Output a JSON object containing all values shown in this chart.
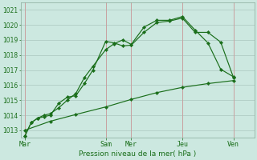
{
  "xlabel": "Pression niveau de la mer( hPa )",
  "ylim": [
    1012.5,
    1021.5
  ],
  "yticks": [
    1013,
    1014,
    1015,
    1016,
    1017,
    1018,
    1019,
    1020,
    1021
  ],
  "xlim": [
    -2,
    108
  ],
  "background_color": "#cce8e0",
  "grid_h_color": "#b0ccc4",
  "vgrid_color": "#c8a0a0",
  "line_color": "#1a6e1a",
  "marker": "D",
  "markersize": 2.2,
  "linewidth": 0.85,
  "day_labels": [
    "Mar",
    "Sam",
    "Mer",
    "Jeu",
    "Ven"
  ],
  "day_positions": [
    0,
    38,
    50,
    74,
    98
  ],
  "line1_x": [
    0,
    3,
    6,
    9,
    12,
    16,
    20,
    24,
    28,
    32,
    38,
    42,
    46,
    50,
    56,
    62,
    68,
    74,
    80,
    86,
    92,
    98
  ],
  "line1_y": [
    1012.6,
    1013.5,
    1013.8,
    1013.9,
    1014.0,
    1014.8,
    1015.2,
    1015.3,
    1016.1,
    1017.0,
    1018.9,
    1018.8,
    1018.6,
    1018.65,
    1019.5,
    1020.15,
    1020.25,
    1020.45,
    1019.5,
    1019.5,
    1018.85,
    1016.5
  ],
  "line2_x": [
    0,
    3,
    6,
    9,
    12,
    16,
    20,
    24,
    28,
    32,
    38,
    42,
    46,
    50,
    56,
    62,
    68,
    74,
    80,
    86,
    92,
    98
  ],
  "line2_y": [
    1012.6,
    1013.5,
    1013.8,
    1014.0,
    1014.1,
    1014.5,
    1015.0,
    1015.45,
    1016.5,
    1017.25,
    1018.35,
    1018.75,
    1019.0,
    1018.7,
    1019.85,
    1020.3,
    1020.3,
    1020.55,
    1019.65,
    1018.8,
    1017.05,
    1016.55
  ],
  "line3_x": [
    0,
    12,
    24,
    38,
    50,
    62,
    74,
    86,
    98
  ],
  "line3_y": [
    1013.0,
    1013.6,
    1014.05,
    1014.55,
    1015.05,
    1015.5,
    1015.85,
    1016.1,
    1016.3
  ]
}
